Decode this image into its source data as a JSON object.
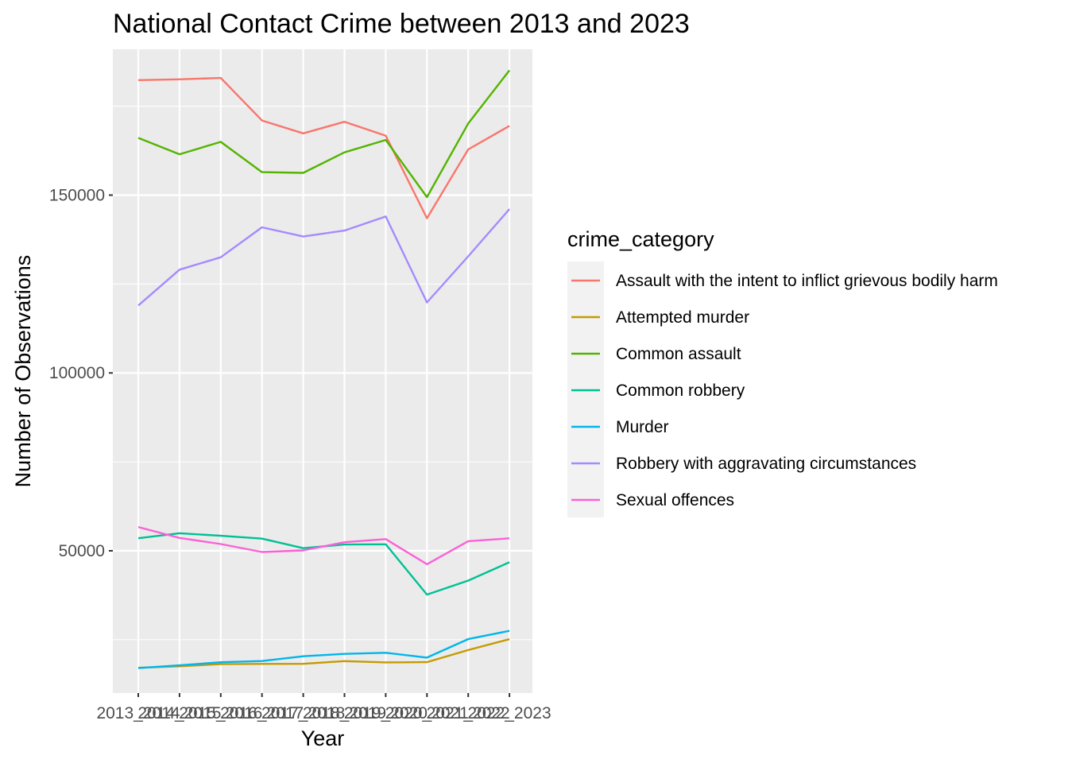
{
  "chart_data": {
    "type": "line",
    "title": "National Contact Crime between 2013 and 2023",
    "xlabel": "Year",
    "ylabel": "Number of Observations",
    "categories": [
      "2013_2014",
      "2014_2015",
      "2015_2016",
      "2016_2017",
      "2017_2018",
      "2018_2019",
      "2019_2020",
      "2020_2021",
      "2021_2022",
      "2022_2023"
    ],
    "yticks": [
      50000,
      100000,
      150000
    ],
    "ytick_labels": [
      "50000",
      "100000",
      "150000"
    ],
    "ylim": [
      10000,
      191000
    ],
    "grid": true,
    "legend": {
      "title": "crime_category",
      "position": "right"
    },
    "series": [
      {
        "name": "Assault with the intent to inflict grievous bodily harm",
        "color": "#F8766D",
        "values": [
          182333,
          182556,
          182933,
          170979,
          167352,
          170616,
          166720,
          143499,
          162848,
          169451
        ]
      },
      {
        "name": "Attempted murder",
        "color": "#C49A00",
        "values": [
          17110,
          17537,
          18127,
          18205,
          18233,
          18980,
          18635,
          18700,
          22095,
          25157
        ]
      },
      {
        "name": "Common assault",
        "color": "#53B400",
        "values": [
          166081,
          161486,
          164958,
          156450,
          156243,
          162012,
          165494,
          149443,
          170134,
          185087
        ]
      },
      {
        "name": "Common robbery",
        "color": "#00C094",
        "values": [
          53540,
          54927,
          54220,
          53418,
          50730,
          51765,
          51825,
          37676,
          41613,
          46770
        ]
      },
      {
        "name": "Murder",
        "color": "#00B6EB",
        "values": [
          17023,
          17805,
          18673,
          19016,
          20336,
          21022,
          21325,
          19972,
          25181,
          27494
        ]
      },
      {
        "name": "Robbery with aggravating circumstances",
        "color": "#A58AFF",
        "values": [
          118963,
          129045,
          132527,
          140956,
          138364,
          140032,
          143990,
          119828,
          132800,
          146065
        ]
      },
      {
        "name": "Sexual offences",
        "color": "#FB61D7",
        "values": [
          56680,
          53617,
          51895,
          49660,
          50108,
          52420,
          53293,
          46214,
          52694,
          53498
        ]
      }
    ]
  }
}
